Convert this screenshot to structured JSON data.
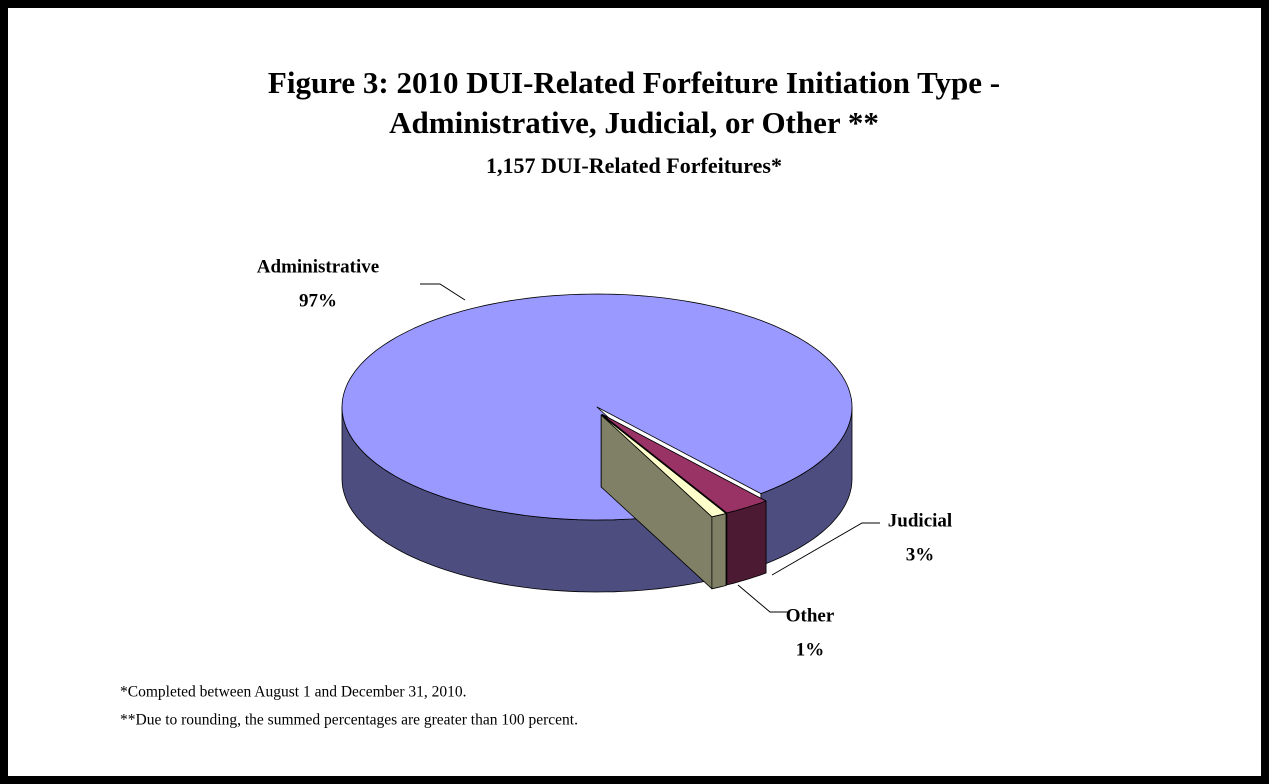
{
  "chart_data": {
    "type": "pie",
    "title": [
      "Figure 3:  2010 DUI-Related Forfeiture Initiation Type -",
      "Administrative, Judicial, or Other **"
    ],
    "subtitle": "1,157 DUI-Related Forfeitures*",
    "categories": [
      "Administrative",
      "Judicial",
      "Other"
    ],
    "values": [
      97,
      3,
      1
    ],
    "value_labels": [
      "97%",
      "3%",
      "1%"
    ],
    "colors": [
      "#9999ff",
      "#993366",
      "#ffffcc"
    ],
    "notes": [
      "*Completed between August 1 and December 31, 2010.",
      "**Due to rounding, the summed percentages are greater than 100 percent."
    ]
  }
}
